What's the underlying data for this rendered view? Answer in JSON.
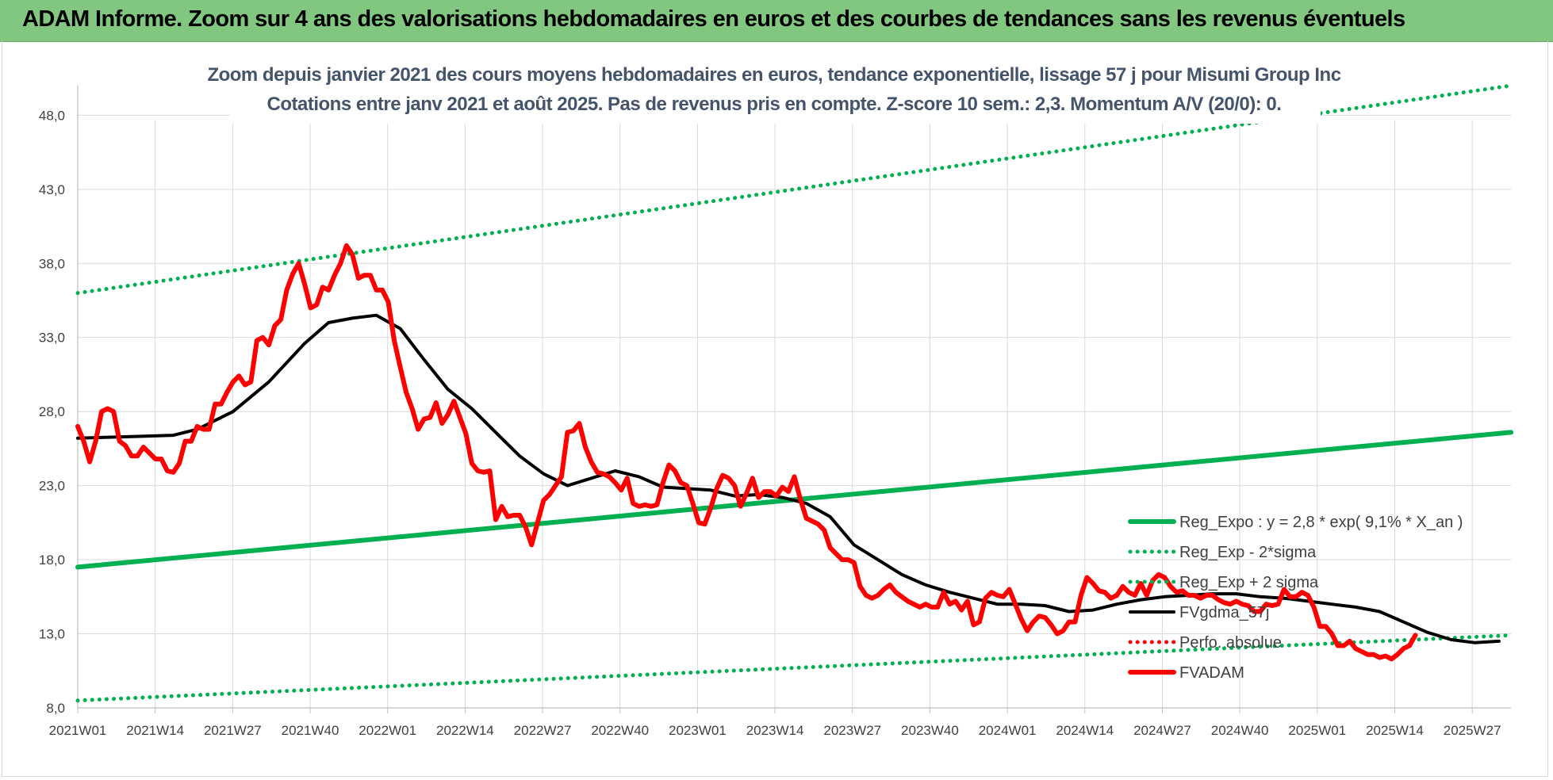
{
  "header": {
    "title": "ADAM Informe. Zoom sur 4 ans des valorisations hebdomadaires en euros et des courbes de tendances sans les revenus éventuels"
  },
  "chart_data": {
    "type": "line",
    "title": "",
    "subtitle_lines": [
      "Zoom depuis janvier 2021 des cours moyens hebdomadaires en euros, tendance exponentielle, lissage 57 j pour Misumi Group Inc",
      "Cotations entre janv 2021 et août 2025. Pas de revenus pris en compte. Z-score 10 sem.: 2,3. Momentum A/V (20/0): 0."
    ],
    "xlabel": "",
    "ylabel": "",
    "ylim": [
      8.0,
      50.0
    ],
    "y_ticks": [
      "8,0",
      "13,0",
      "18,0",
      "23,0",
      "28,0",
      "33,0",
      "38,0",
      "43,0",
      "48,0"
    ],
    "x_ticks": [
      "2021W01",
      "2021W14",
      "2021W27",
      "2021W40",
      "2022W01",
      "2022W14",
      "2022W27",
      "2022W40",
      "2023W01",
      "2023W14",
      "2023W27",
      "2023W40",
      "2024W01",
      "2024W14",
      "2024W27",
      "2024W40",
      "2025W01",
      "2025W14",
      "2025W27"
    ],
    "grid": true,
    "legend_position": "right",
    "series": [
      {
        "name": "Reg_Expo : y = 2,8 * exp( 9,1% *  X_an )",
        "color": "#00b050",
        "style": "solid",
        "points": [
          [
            0,
            17.5
          ],
          [
            240,
            26.6
          ]
        ]
      },
      {
        "name": "Reg_Exp - 2*sigma",
        "color": "#00b050",
        "style": "dotted",
        "points": [
          [
            0,
            8.5
          ],
          [
            240,
            12.9
          ]
        ]
      },
      {
        "name": "Reg_Exp + 2 sigma",
        "color": "#00b050",
        "style": "dotted",
        "points": [
          [
            0,
            36.0
          ],
          [
            240,
            50.0
          ]
        ]
      },
      {
        "name": "FVgdma_57j",
        "color": "#000000",
        "style": "solid",
        "points": [
          [
            0,
            26.2
          ],
          [
            8,
            26.3
          ],
          [
            16,
            26.4
          ],
          [
            20,
            26.8
          ],
          [
            26,
            28.0
          ],
          [
            32,
            30.0
          ],
          [
            38,
            32.6
          ],
          [
            42,
            34.0
          ],
          [
            46,
            34.3
          ],
          [
            50,
            34.5
          ],
          [
            54,
            33.6
          ],
          [
            58,
            31.5
          ],
          [
            62,
            29.5
          ],
          [
            66,
            28.2
          ],
          [
            70,
            26.6
          ],
          [
            74,
            25.0
          ],
          [
            78,
            23.8
          ],
          [
            82,
            23.0
          ],
          [
            86,
            23.5
          ],
          [
            90,
            24.0
          ],
          [
            94,
            23.6
          ],
          [
            98,
            22.9
          ],
          [
            102,
            22.8
          ],
          [
            106,
            22.7
          ],
          [
            110,
            22.3
          ],
          [
            114,
            22.4
          ],
          [
            118,
            22.2
          ],
          [
            122,
            21.8
          ],
          [
            126,
            20.9
          ],
          [
            130,
            19.0
          ],
          [
            134,
            18.0
          ],
          [
            138,
            17.0
          ],
          [
            142,
            16.3
          ],
          [
            146,
            15.8
          ],
          [
            150,
            15.4
          ],
          [
            154,
            15.0
          ],
          [
            158,
            15.0
          ],
          [
            162,
            14.9
          ],
          [
            166,
            14.5
          ],
          [
            170,
            14.6
          ],
          [
            174,
            15.0
          ],
          [
            178,
            15.3
          ],
          [
            182,
            15.5
          ],
          [
            186,
            15.6
          ],
          [
            190,
            15.7
          ],
          [
            194,
            15.7
          ],
          [
            198,
            15.5
          ],
          [
            202,
            15.4
          ],
          [
            206,
            15.2
          ],
          [
            210,
            15.0
          ],
          [
            214,
            14.8
          ],
          [
            218,
            14.5
          ],
          [
            222,
            13.8
          ],
          [
            226,
            13.1
          ],
          [
            230,
            12.6
          ],
          [
            234,
            12.4
          ],
          [
            238,
            12.5
          ]
        ]
      },
      {
        "name": "Perfo. absolue",
        "color": "#ff0000",
        "style": "dotted",
        "points": []
      },
      {
        "name": "FVADAM",
        "color": "#ff0000",
        "style": "solid",
        "points": [
          [
            0,
            27.0
          ],
          [
            1,
            26.0
          ],
          [
            2,
            24.6
          ],
          [
            3,
            26.0
          ],
          [
            4,
            28.0
          ],
          [
            5,
            28.2
          ],
          [
            6,
            28.0
          ],
          [
            7,
            26.0
          ],
          [
            8,
            25.7
          ],
          [
            9,
            25.0
          ],
          [
            10,
            25.0
          ],
          [
            11,
            25.6
          ],
          [
            12,
            25.2
          ],
          [
            13,
            24.8
          ],
          [
            14,
            24.8
          ],
          [
            15,
            24.0
          ],
          [
            16,
            23.9
          ],
          [
            17,
            24.5
          ],
          [
            18,
            26.0
          ],
          [
            19,
            26.0
          ],
          [
            20,
            27.0
          ],
          [
            21,
            26.8
          ],
          [
            22,
            26.8
          ],
          [
            23,
            28.5
          ],
          [
            24,
            28.5
          ],
          [
            25,
            29.3
          ],
          [
            26,
            30.0
          ],
          [
            27,
            30.4
          ],
          [
            28,
            29.8
          ],
          [
            29,
            30.0
          ],
          [
            30,
            32.8
          ],
          [
            31,
            33.0
          ],
          [
            32,
            32.5
          ],
          [
            33,
            33.8
          ],
          [
            34,
            34.2
          ],
          [
            35,
            36.2
          ],
          [
            36,
            37.3
          ],
          [
            37,
            38.0
          ],
          [
            38,
            36.6
          ],
          [
            39,
            35.0
          ],
          [
            40,
            35.2
          ],
          [
            41,
            36.4
          ],
          [
            42,
            36.2
          ],
          [
            43,
            37.2
          ],
          [
            44,
            38.0
          ],
          [
            45,
            39.2
          ],
          [
            46,
            38.6
          ],
          [
            47,
            37.0
          ],
          [
            48,
            37.2
          ],
          [
            49,
            37.2
          ],
          [
            50,
            36.2
          ],
          [
            51,
            36.2
          ],
          [
            52,
            35.4
          ],
          [
            53,
            32.8
          ],
          [
            54,
            31.0
          ],
          [
            55,
            29.3
          ],
          [
            56,
            28.2
          ],
          [
            57,
            26.8
          ],
          [
            58,
            27.5
          ],
          [
            59,
            27.6
          ],
          [
            60,
            28.6
          ],
          [
            61,
            27.2
          ],
          [
            62,
            27.8
          ],
          [
            63,
            28.7
          ],
          [
            64,
            27.6
          ],
          [
            65,
            26.5
          ],
          [
            66,
            24.5
          ],
          [
            67,
            24.0
          ],
          [
            68,
            23.9
          ],
          [
            69,
            24.0
          ],
          [
            70,
            20.7
          ],
          [
            71,
            21.6
          ],
          [
            72,
            20.9
          ],
          [
            73,
            21.0
          ],
          [
            74,
            21.0
          ],
          [
            75,
            20.2
          ],
          [
            76,
            19.0
          ],
          [
            77,
            20.5
          ],
          [
            78,
            22.0
          ],
          [
            79,
            22.4
          ],
          [
            80,
            23.0
          ],
          [
            81,
            23.6
          ],
          [
            82,
            26.6
          ],
          [
            83,
            26.7
          ],
          [
            84,
            27.2
          ],
          [
            85,
            25.6
          ],
          [
            86,
            24.6
          ],
          [
            87,
            23.9
          ],
          [
            88,
            23.8
          ],
          [
            89,
            23.6
          ],
          [
            90,
            23.2
          ],
          [
            91,
            22.7
          ],
          [
            92,
            23.5
          ],
          [
            93,
            21.8
          ],
          [
            94,
            21.6
          ],
          [
            95,
            21.7
          ],
          [
            96,
            21.6
          ],
          [
            97,
            21.7
          ],
          [
            98,
            23.2
          ],
          [
            99,
            24.4
          ],
          [
            100,
            24.0
          ],
          [
            101,
            23.2
          ],
          [
            102,
            23.0
          ],
          [
            103,
            21.8
          ],
          [
            104,
            20.5
          ],
          [
            105,
            20.4
          ],
          [
            106,
            21.5
          ],
          [
            107,
            22.8
          ],
          [
            108,
            23.7
          ],
          [
            109,
            23.5
          ],
          [
            110,
            23.0
          ],
          [
            111,
            21.6
          ],
          [
            112,
            22.5
          ],
          [
            113,
            23.5
          ],
          [
            114,
            22.2
          ],
          [
            115,
            22.6
          ],
          [
            116,
            22.6
          ],
          [
            117,
            22.3
          ],
          [
            118,
            22.9
          ],
          [
            119,
            22.6
          ],
          [
            120,
            23.6
          ],
          [
            121,
            22.1
          ],
          [
            122,
            20.8
          ],
          [
            123,
            20.6
          ],
          [
            124,
            20.4
          ],
          [
            125,
            20.0
          ],
          [
            126,
            18.8
          ],
          [
            127,
            18.4
          ],
          [
            128,
            18.0
          ],
          [
            129,
            18.0
          ],
          [
            130,
            17.8
          ],
          [
            131,
            16.2
          ],
          [
            132,
            15.6
          ],
          [
            133,
            15.4
          ],
          [
            134,
            15.6
          ],
          [
            135,
            16.0
          ],
          [
            136,
            16.3
          ],
          [
            137,
            15.8
          ],
          [
            138,
            15.5
          ],
          [
            139,
            15.2
          ],
          [
            140,
            15.0
          ],
          [
            141,
            14.8
          ],
          [
            142,
            15.0
          ],
          [
            143,
            14.8
          ],
          [
            144,
            14.8
          ],
          [
            145,
            15.8
          ],
          [
            146,
            15.0
          ],
          [
            147,
            15.2
          ],
          [
            148,
            14.6
          ],
          [
            149,
            15.2
          ],
          [
            150,
            13.6
          ],
          [
            151,
            13.8
          ],
          [
            152,
            15.4
          ],
          [
            153,
            15.8
          ],
          [
            154,
            15.6
          ],
          [
            155,
            15.5
          ],
          [
            156,
            16.0
          ],
          [
            157,
            15.0
          ],
          [
            158,
            14.0
          ],
          [
            159,
            13.2
          ],
          [
            160,
            13.8
          ],
          [
            161,
            14.2
          ],
          [
            162,
            14.1
          ],
          [
            163,
            13.6
          ],
          [
            164,
            13.0
          ],
          [
            165,
            13.2
          ],
          [
            166,
            13.8
          ],
          [
            167,
            13.8
          ],
          [
            168,
            15.6
          ],
          [
            169,
            16.8
          ],
          [
            170,
            16.4
          ],
          [
            171,
            15.9
          ],
          [
            172,
            15.8
          ],
          [
            173,
            15.4
          ],
          [
            174,
            15.6
          ],
          [
            175,
            16.2
          ],
          [
            176,
            15.8
          ],
          [
            177,
            15.6
          ],
          [
            178,
            16.4
          ],
          [
            179,
            15.6
          ],
          [
            180,
            16.6
          ],
          [
            181,
            17.0
          ],
          [
            182,
            16.8
          ],
          [
            183,
            16.2
          ],
          [
            184,
            15.8
          ],
          [
            185,
            15.9
          ],
          [
            186,
            15.6
          ],
          [
            187,
            15.6
          ],
          [
            188,
            15.4
          ],
          [
            189,
            15.6
          ],
          [
            190,
            15.6
          ],
          [
            191,
            15.3
          ],
          [
            192,
            15.1
          ],
          [
            193,
            15.0
          ],
          [
            194,
            15.2
          ],
          [
            195,
            15.0
          ],
          [
            196,
            14.9
          ],
          [
            197,
            14.5
          ],
          [
            198,
            14.5
          ],
          [
            199,
            15.0
          ],
          [
            200,
            14.9
          ],
          [
            201,
            15.0
          ],
          [
            202,
            16.0
          ],
          [
            203,
            15.5
          ],
          [
            204,
            15.5
          ],
          [
            205,
            15.8
          ],
          [
            206,
            15.6
          ],
          [
            207,
            14.8
          ],
          [
            208,
            13.5
          ],
          [
            209,
            13.5
          ],
          [
            210,
            13.0
          ],
          [
            211,
            12.2
          ],
          [
            212,
            12.2
          ],
          [
            213,
            12.5
          ],
          [
            214,
            12.0
          ],
          [
            215,
            11.8
          ],
          [
            216,
            11.6
          ],
          [
            217,
            11.6
          ],
          [
            218,
            11.4
          ],
          [
            219,
            11.5
          ],
          [
            220,
            11.3
          ],
          [
            221,
            11.6
          ],
          [
            222,
            12.0
          ],
          [
            223,
            12.2
          ],
          [
            224,
            12.9
          ]
        ]
      }
    ]
  }
}
